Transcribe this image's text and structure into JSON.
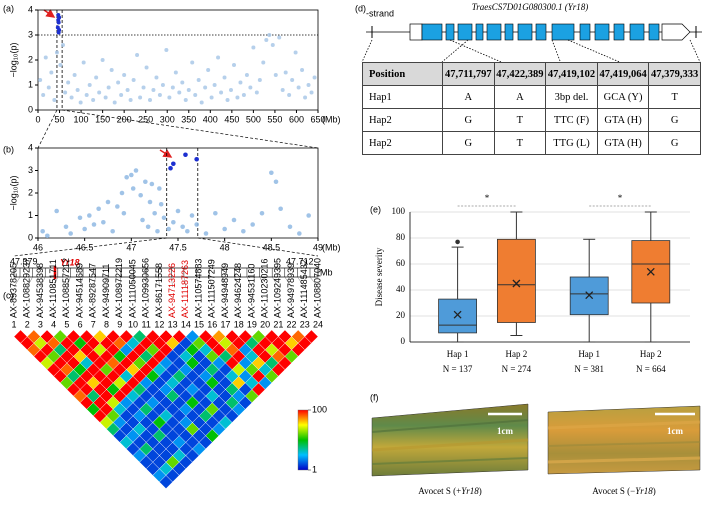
{
  "panel_labels": [
    "(a)",
    "(b)",
    "(c)",
    "(d)",
    "(e)",
    "(f)"
  ],
  "chart_data": [
    {
      "type": "scatter",
      "ylabel": "−log₁₀(p)",
      "xlabel": "(Mb)",
      "xlim": [
        0,
        650
      ],
      "xticks": [
        0,
        50,
        100,
        150,
        200,
        250,
        300,
        350,
        400,
        450,
        500,
        550,
        600,
        650
      ],
      "ylim": [
        0,
        4
      ],
      "yticks": [
        0,
        1,
        2,
        3,
        4
      ],
      "hline": 3,
      "vlines": [
        44,
        56
      ],
      "series": [
        {
          "color": "#a9c8e8",
          "x": [
            5,
            12,
            18,
            25,
            31,
            38,
            44,
            52,
            58,
            63,
            70,
            78,
            85,
            92,
            99,
            106,
            113,
            120,
            128,
            135,
            142,
            150,
            157,
            164,
            171,
            178,
            186,
            193,
            200,
            208,
            215,
            222,
            230,
            237,
            245,
            252,
            260,
            268,
            275,
            283,
            290,
            298,
            305,
            313,
            320,
            328,
            335,
            343,
            350,
            358,
            365,
            373,
            380,
            388,
            395,
            403,
            410,
            418,
            425,
            433,
            440,
            448,
            455,
            463,
            470,
            478,
            485,
            493,
            500,
            508,
            515,
            523,
            530,
            537,
            545,
            552,
            560,
            568,
            575,
            583,
            590,
            598,
            605,
            613,
            620,
            628,
            635,
            642
          ],
          "values": [
            1.2,
            0.6,
            2.1,
            0.9,
            1.5,
            0.4,
            2.3,
            1.8,
            2.6,
            0.7,
            1.1,
            0.5,
            1.4,
            0.8,
            0.3,
            1.9,
            0.6,
            1.0,
            0.4,
            1.3,
            0.7,
            2.0,
            0.5,
            0.9,
            1.6,
            0.3,
            1.1,
            0.6,
            1.4,
            0.8,
            0.4,
            1.2,
            2.2,
            0.5,
            0.9,
            1.7,
            0.4,
            0.8,
            1.3,
            0.6,
            1.0,
            2.4,
            0.5,
            0.9,
            1.5,
            0.7,
            1.1,
            0.4,
            0.8,
            1.9,
            0.6,
            1.2,
            0.3,
            0.9,
            1.6,
            0.5,
            1.0,
            2.1,
            0.7,
            1.3,
            0.4,
            0.8,
            1.8,
            0.5,
            1.1,
            0.6,
            1.4,
            0.9,
            2.5,
            0.7,
            1.2,
            1.9,
            2.8,
            3.0,
            2.6,
            1.4,
            2.9,
            0.8,
            1.5,
            0.6,
            1.2,
            2.3,
            0.9,
            1.6,
            0.5,
            1.0,
            0.7,
            1.3
          ]
        },
        {
          "color": "#1c2fd0",
          "x": [
            46,
            47,
            47,
            48,
            48,
            49,
            49
          ],
          "values": [
            3.3,
            3.6,
            3.8,
            3.1,
            3.5,
            3.7,
            3.2
          ]
        }
      ]
    },
    {
      "type": "scatter",
      "ylabel": "−log₁₀(p)",
      "xlabel": "(Mb)",
      "xlim": [
        46,
        49
      ],
      "xticks": [
        46,
        46.5,
        47,
        47.5,
        48,
        48.5,
        49
      ],
      "ylim": [
        0,
        4
      ],
      "yticks": [
        0,
        1,
        2,
        3,
        4
      ],
      "vlines": [
        47.379,
        47.712
      ],
      "series": [
        {
          "color": "#8fb8e3",
          "x": [
            46.05,
            46.1,
            46.2,
            46.3,
            46.35,
            46.45,
            46.5,
            46.55,
            46.6,
            46.65,
            46.7,
            46.75,
            46.8,
            46.85,
            46.9,
            46.92,
            46.95,
            47.0,
            47.02,
            47.05,
            47.1,
            47.12,
            47.15,
            47.18,
            47.2,
            47.22,
            47.25,
            47.28,
            47.3,
            47.32,
            47.35,
            47.4,
            47.45,
            47.5,
            47.55,
            47.6,
            47.65,
            47.7,
            47.8,
            47.9,
            48.0,
            48.1,
            48.2,
            48.3,
            48.4,
            48.5,
            48.55,
            48.6,
            48.7,
            48.8,
            48.9
          ],
          "values": [
            0.3,
            0.1,
            1.2,
            0.5,
            0.2,
            0.9,
            0.4,
            1.0,
            0.6,
            1.3,
            0.7,
            1.6,
            0.3,
            1.4,
            2.0,
            1.1,
            2.7,
            2.8,
            2.2,
            3.0,
            1.9,
            0.8,
            2.5,
            0.5,
            1.6,
            2.4,
            1.1,
            0.3,
            2.2,
            1.5,
            0.9,
            0.4,
            0.7,
            1.2,
            0.5,
            0.3,
            1.0,
            0.6,
            0.2,
            1.1,
            0.4,
            0.8,
            0.3,
            0.6,
            1.1,
            2.9,
            2.5,
            1.3,
            0.5,
            0.2,
            1.0
          ]
        },
        {
          "color": "#1c2fd0",
          "x": [
            47.42,
            47.45,
            47.58,
            47.7
          ],
          "values": [
            3.1,
            3.3,
            3.7,
            3.5
          ]
        }
      ]
    },
    {
      "type": "box",
      "ylabel": "Disease severity",
      "ylim": [
        0,
        100
      ],
      "yticks": [
        0,
        20,
        40,
        60,
        80,
        100
      ],
      "grid": true,
      "significance": [
        "*",
        "*"
      ],
      "boxes": [
        {
          "name": "Hap 1",
          "n_label": "N = 137",
          "color": "#4f9bd9",
          "min": 0,
          "q1": 7,
          "median": 13,
          "q3": 33,
          "max": 73,
          "mean": 21,
          "outliers": [
            77
          ]
        },
        {
          "name": "Hap 2",
          "n_label": "N = 274",
          "color": "#ef7d31",
          "min": 5,
          "q1": 15,
          "median": 44,
          "q3": 79,
          "max": 100,
          "mean": 45,
          "outliers": []
        },
        {
          "name": "Hap 1",
          "n_label": "N = 381",
          "color": "#4f9bd9",
          "min": 0,
          "q1": 21,
          "median": 37,
          "q3": 50,
          "max": 79,
          "mean": 36,
          "outliers": []
        },
        {
          "name": "Hap 2",
          "n_label": "N = 664",
          "color": "#ef7d31",
          "min": 0,
          "q1": 30,
          "median": 60,
          "q3": 78,
          "max": 100,
          "mean": 54,
          "outliers": []
        }
      ]
    }
  ],
  "ld": {
    "unit": "Mb",
    "gene_label": "Yr18",
    "colors": [
      "#0000c8",
      "#00bfff",
      "#00c000",
      "#ffff00",
      "#ff0000"
    ],
    "colorbar_ticks": [
      1,
      100
    ],
    "snps": [
      {
        "n": "1",
        "id": "AX-89378205"
      },
      {
        "n": "2",
        "id": "AX-108829237"
      },
      {
        "n": "3",
        "id": "AX-94538398"
      },
      {
        "n": "4",
        "id": "AX-110851711"
      },
      {
        "n": "5",
        "id": "AX-108857212"
      },
      {
        "n": "6",
        "id": "AX-94514689"
      },
      {
        "n": "7",
        "id": "AX-89287547"
      },
      {
        "n": "8",
        "id": "AX-94909711"
      },
      {
        "n": "9",
        "id": "AX-108972219"
      },
      {
        "n": "10",
        "id": "AX-111050045"
      },
      {
        "n": "11",
        "id": "AX-109930656"
      },
      {
        "n": "12",
        "id": "AX-86171558"
      },
      {
        "n": "13",
        "id": "AX-94713226",
        "color": "#e00000"
      },
      {
        "n": "14",
        "id": "AX-111187263",
        "color": "#e00000"
      },
      {
        "n": "15",
        "id": "AX-110574883"
      },
      {
        "n": "16",
        "id": "AX-111507249"
      },
      {
        "n": "17",
        "id": "AX-94948949"
      },
      {
        "n": "18",
        "id": "AX-94624248"
      },
      {
        "n": "19",
        "id": "AX-94531160"
      },
      {
        "n": "20",
        "id": "AX-110230216"
      },
      {
        "n": "21",
        "id": "AX-109249395"
      },
      {
        "n": "22",
        "id": "AX-94978939"
      },
      {
        "n": "23",
        "id": "AX-111485432"
      },
      {
        "n": "24",
        "id": "AX-108807040"
      }
    ],
    "values": [
      [
        100,
        90,
        100,
        60,
        100,
        100,
        80,
        100,
        100,
        40,
        100,
        100,
        100,
        20,
        100,
        85,
        100,
        100,
        60,
        100,
        100,
        90,
        100
      ],
      [
        100,
        70,
        90,
        100,
        50,
        100,
        100,
        90,
        30,
        100,
        100,
        80,
        10,
        60,
        100,
        70,
        100,
        40,
        100,
        100,
        80,
        100
      ],
      [
        90,
        100,
        40,
        100,
        100,
        70,
        100,
        20,
        100,
        60,
        100,
        10,
        50,
        30,
        100,
        90,
        20,
        100,
        70,
        100,
        100
      ],
      [
        100,
        60,
        100,
        80,
        100,
        100,
        50,
        100,
        40,
        100,
        10,
        30,
        10,
        60,
        40,
        100,
        30,
        100,
        90,
        60
      ],
      [
        70,
        100,
        100,
        30,
        100,
        90,
        100,
        60,
        100,
        20,
        10,
        50,
        10,
        20,
        100,
        20,
        80,
        40,
        100
      ],
      [
        100,
        90,
        50,
        100,
        60,
        100,
        80,
        100,
        30,
        10,
        20,
        10,
        40,
        10,
        70,
        60,
        30,
        100
      ],
      [
        100,
        40,
        100,
        100,
        100,
        30,
        100,
        50,
        10,
        40,
        10,
        20,
        10,
        30,
        20,
        100,
        60
      ],
      [
        60,
        100,
        80,
        100,
        70,
        100,
        20,
        10,
        30,
        10,
        10,
        50,
        10,
        80,
        30,
        20
      ],
      [
        100,
        100,
        100,
        50,
        100,
        40,
        10,
        20,
        10,
        20,
        10,
        10,
        40,
        10,
        100
      ],
      [
        90,
        40,
        100,
        100,
        30,
        10,
        10,
        40,
        10,
        10,
        30,
        10,
        20,
        60
      ],
      [
        100,
        100,
        70,
        20,
        10,
        20,
        10,
        10,
        50,
        10,
        10,
        40,
        10
      ],
      [
        50,
        100,
        30,
        10,
        40,
        10,
        10,
        20,
        10,
        60,
        10,
        20
      ],
      [
        100,
        60,
        10,
        20,
        10,
        30,
        10,
        10,
        40,
        10,
        10
      ],
      [
        70,
        20,
        10,
        10,
        50,
        10,
        20,
        10,
        10,
        30
      ],
      [
        40,
        10,
        30,
        10,
        10,
        10,
        60,
        10,
        20
      ],
      [
        10,
        20,
        10,
        40,
        10,
        10,
        10,
        50
      ],
      [
        30,
        10,
        10,
        10,
        20,
        10,
        10
      ],
      [
        10,
        40,
        10,
        10,
        10,
        20
      ],
      [
        20,
        10,
        10,
        30,
        10
      ],
      [
        10,
        10,
        60,
        10
      ],
      [
        10,
        30,
        10
      ],
      [
        20,
        10
      ],
      [
        10
      ]
    ]
  },
  "gene": {
    "strand": "-strand",
    "title": "TraesCS7D01G080300.1 (Yr18)"
  },
  "table": {
    "header": [
      "Position",
      "47,711,797",
      "47,422,389",
      "47,419,102",
      "47,419,064",
      "47,379,333"
    ],
    "rows": [
      [
        "Hap1",
        "A",
        "A",
        "3bp del.",
        "GCA (Y)",
        "T"
      ],
      [
        "Hap2",
        "G",
        "T",
        "TTC (F)",
        "GTA (H)",
        "G"
      ],
      [
        "Hap2",
        "G",
        "T",
        "TTG (L)",
        "GTA (H)",
        "G"
      ]
    ]
  },
  "images": [
    {
      "scale_label": "1cm",
      "caption": [
        "Avocet S (+",
        "Yr18",
        ")"
      ]
    },
    {
      "scale_label": "1cm",
      "caption": [
        "Avocet S (−",
        "Yr18",
        ")"
      ]
    }
  ]
}
